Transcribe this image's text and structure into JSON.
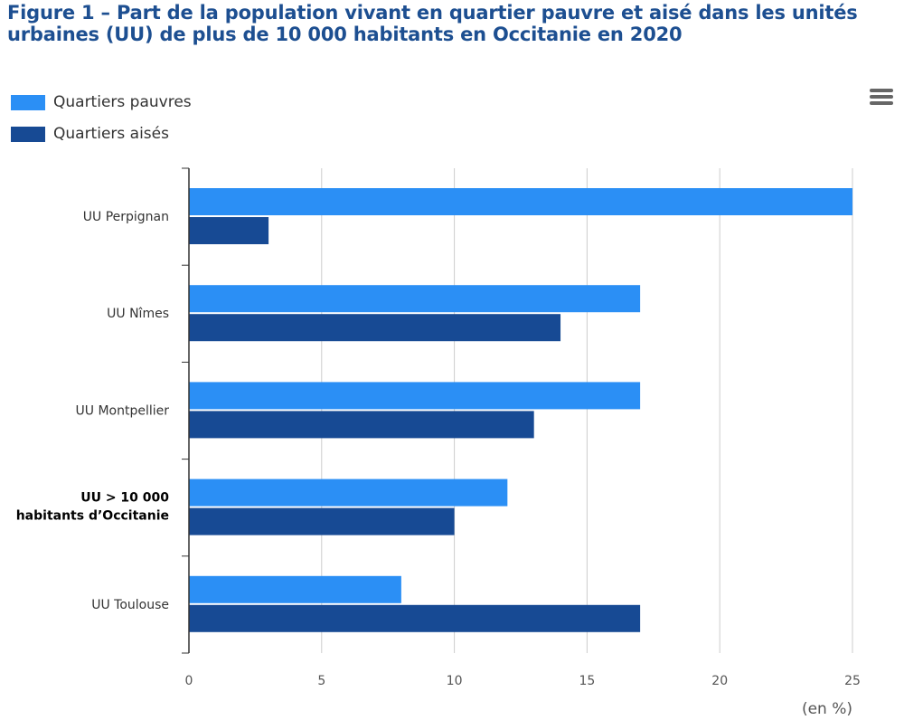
{
  "chart_data": {
    "type": "bar",
    "orientation": "horizontal",
    "title": "Figure 1 – Part de la population vivant en quartier pauvre et aisé dans les unités urbaines (UU) de plus de 10 000 habitants en Occitanie en 2020",
    "categories": [
      "UU Perpignan",
      "UU Nîmes",
      "UU Montpellier",
      "UU > 10 000 habitants d’Occitanie",
      "UU Toulouse"
    ],
    "highlighted_category": "UU > 10 000 habitants d’Occitanie",
    "series": [
      {
        "name": "Quartiers pauvres",
        "color": "#2b8ff5",
        "values": [
          25,
          17,
          17,
          12,
          8
        ]
      },
      {
        "name": "Quartiers aisés",
        "color": "#174a94",
        "values": [
          3,
          14,
          13,
          10,
          17
        ]
      }
    ],
    "xlim": [
      0,
      25
    ],
    "xticks": [
      "0",
      "5",
      "10",
      "15",
      "20",
      "25"
    ],
    "unit_label": "(en %)",
    "grid": true,
    "legend_position": "top-left"
  },
  "menu": {
    "icon": "hamburger-menu-icon"
  }
}
